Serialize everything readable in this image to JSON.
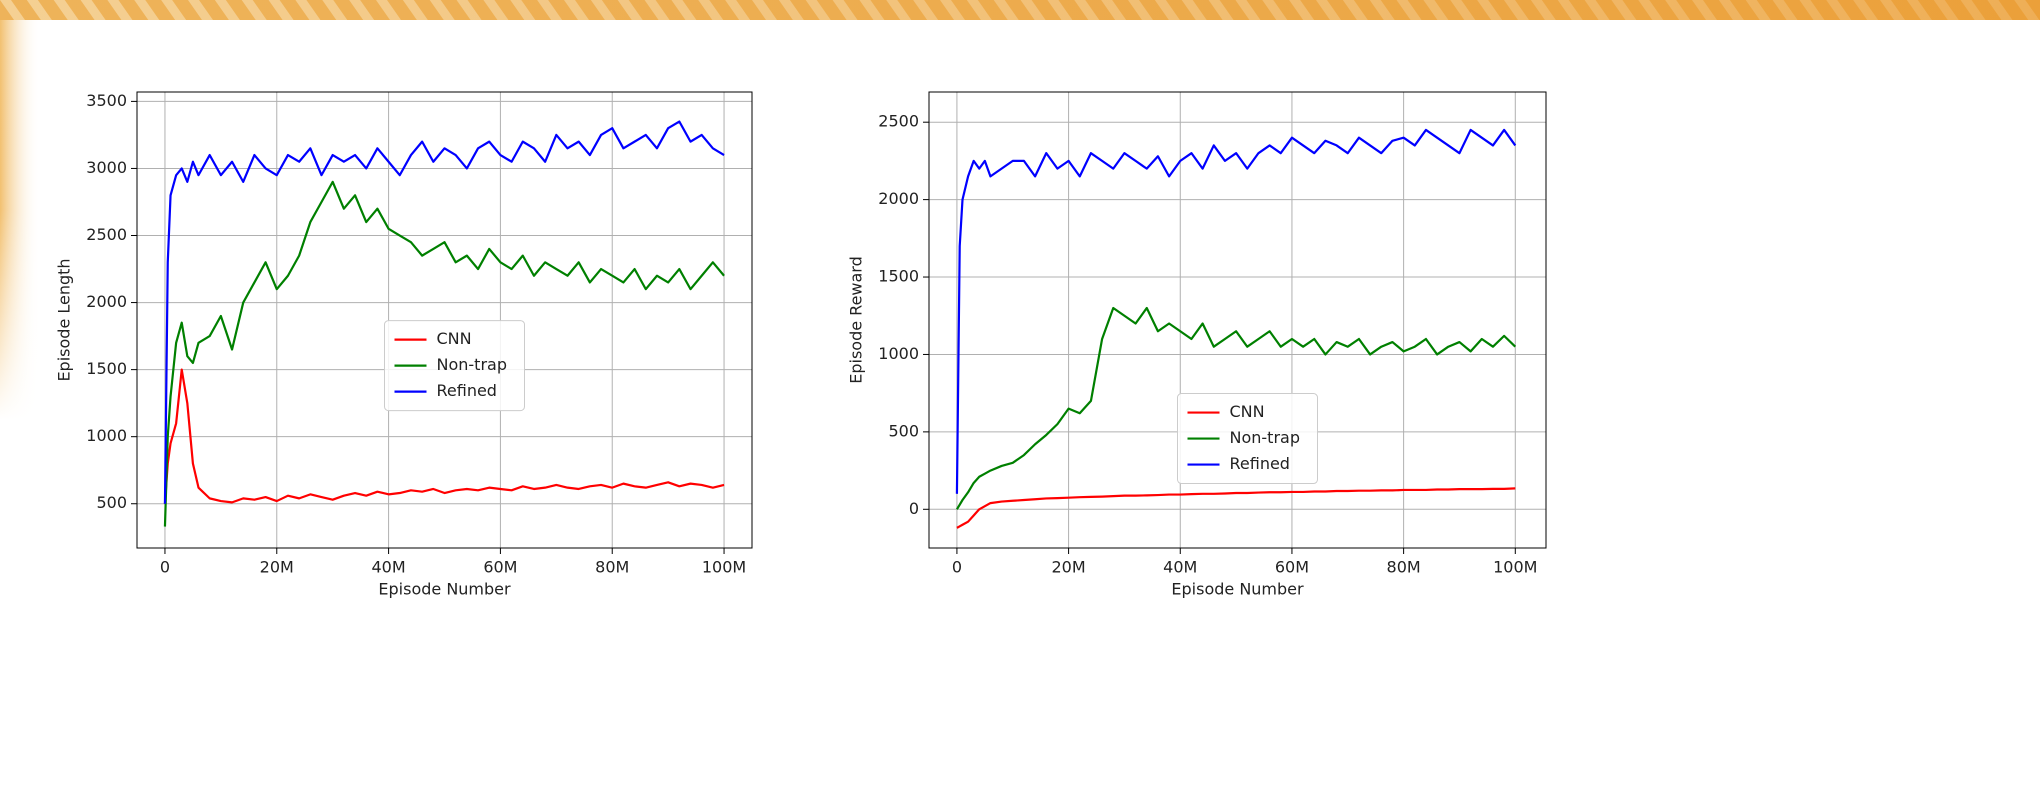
{
  "chart_data": [
    {
      "type": "line",
      "xlabel": "Episode Number",
      "ylabel": "Episode Length",
      "x": [
        0,
        500000,
        1000000,
        2000000,
        3000000,
        4000000,
        5000000,
        6000000,
        8000000,
        10000000,
        12000000,
        14000000,
        16000000,
        18000000,
        20000000,
        22000000,
        24000000,
        26000000,
        28000000,
        30000000,
        32000000,
        34000000,
        36000000,
        38000000,
        40000000,
        42000000,
        44000000,
        46000000,
        48000000,
        50000000,
        52000000,
        54000000,
        56000000,
        58000000,
        60000000,
        62000000,
        64000000,
        66000000,
        68000000,
        70000000,
        72000000,
        74000000,
        76000000,
        78000000,
        80000000,
        82000000,
        84000000,
        86000000,
        88000000,
        90000000,
        92000000,
        94000000,
        96000000,
        98000000,
        100000000
      ],
      "series": [
        {
          "name": "CNN",
          "color": "#ff0000",
          "values": [
            500,
            800,
            950,
            1100,
            1500,
            1250,
            800,
            620,
            540,
            520,
            510,
            540,
            530,
            550,
            520,
            560,
            540,
            570,
            550,
            530,
            560,
            580,
            560,
            590,
            570,
            580,
            600,
            590,
            610,
            580,
            600,
            610,
            600,
            620,
            610,
            600,
            630,
            610,
            620,
            640,
            620,
            610,
            630,
            640,
            620,
            650,
            630,
            620,
            640,
            660,
            630,
            650,
            640,
            620,
            640
          ]
        },
        {
          "name": "Non-trap",
          "color": "#008000",
          "values": [
            330,
            1000,
            1300,
            1700,
            1850,
            1600,
            1550,
            1700,
            1750,
            1900,
            1650,
            2000,
            2150,
            2300,
            2100,
            2200,
            2350,
            2600,
            2750,
            2900,
            2700,
            2800,
            2600,
            2700,
            2550,
            2500,
            2450,
            2350,
            2400,
            2450,
            2300,
            2350,
            2250,
            2400,
            2300,
            2250,
            2350,
            2200,
            2300,
            2250,
            2200,
            2300,
            2150,
            2250,
            2200,
            2150,
            2250,
            2100,
            2200,
            2150,
            2250,
            2100,
            2200,
            2300,
            2200
          ]
        },
        {
          "name": "Refined",
          "color": "#0000ff",
          "values": [
            500,
            2300,
            2800,
            2950,
            3000,
            2900,
            3050,
            2950,
            3100,
            2950,
            3050,
            2900,
            3100,
            3000,
            2950,
            3100,
            3050,
            3150,
            2950,
            3100,
            3050,
            3100,
            3000,
            3150,
            3050,
            2950,
            3100,
            3200,
            3050,
            3150,
            3100,
            3000,
            3150,
            3200,
            3100,
            3050,
            3200,
            3150,
            3050,
            3250,
            3150,
            3200,
            3100,
            3250,
            3300,
            3150,
            3200,
            3250,
            3150,
            3300,
            3350,
            3200,
            3250,
            3150,
            3100
          ]
        }
      ],
      "xlim": [
        -5000000,
        105000000
      ],
      "xticks": [
        0,
        {
          "value": 20000000,
          "label": "20M"
        },
        {
          "value": 40000000,
          "label": "40M"
        },
        {
          "value": 60000000,
          "label": "60M"
        },
        {
          "value": 80000000,
          "label": "80M"
        },
        {
          "value": 100000000,
          "label": "100M"
        }
      ],
      "ylim": [
        170,
        3570
      ],
      "yticks": [
        500,
        1000,
        1500,
        2000,
        2500,
        3000,
        3500
      ],
      "grid": true,
      "legend": "center"
    },
    {
      "type": "line",
      "xlabel": "Episode Number",
      "ylabel": "Episode Reward",
      "x": [
        0,
        500000,
        1000000,
        2000000,
        3000000,
        4000000,
        5000000,
        6000000,
        8000000,
        10000000,
        12000000,
        14000000,
        16000000,
        18000000,
        20000000,
        22000000,
        24000000,
        26000000,
        28000000,
        30000000,
        32000000,
        34000000,
        36000000,
        38000000,
        40000000,
        42000000,
        44000000,
        46000000,
        48000000,
        50000000,
        52000000,
        54000000,
        56000000,
        58000000,
        60000000,
        62000000,
        64000000,
        66000000,
        68000000,
        70000000,
        72000000,
        74000000,
        76000000,
        78000000,
        80000000,
        82000000,
        84000000,
        86000000,
        88000000,
        90000000,
        92000000,
        94000000,
        96000000,
        98000000,
        100000000
      ],
      "series": [
        {
          "name": "CNN",
          "color": "#ff0000",
          "values": [
            -120,
            -110,
            -100,
            -80,
            -40,
            0,
            20,
            40,
            50,
            55,
            60,
            65,
            70,
            72,
            75,
            78,
            80,
            82,
            85,
            88,
            88,
            90,
            92,
            95,
            95,
            98,
            100,
            100,
            102,
            105,
            105,
            108,
            110,
            110,
            112,
            112,
            115,
            115,
            118,
            118,
            120,
            120,
            122,
            122,
            125,
            125,
            125,
            128,
            128,
            130,
            130,
            130,
            132,
            132,
            135
          ]
        },
        {
          "name": "Non-trap",
          "color": "#008000",
          "values": [
            0,
            30,
            60,
            110,
            170,
            210,
            230,
            250,
            280,
            300,
            350,
            420,
            480,
            550,
            650,
            620,
            700,
            1100,
            1300,
            1250,
            1200,
            1300,
            1150,
            1200,
            1150,
            1100,
            1200,
            1050,
            1100,
            1150,
            1050,
            1100,
            1150,
            1050,
            1100,
            1050,
            1100,
            1000,
            1080,
            1050,
            1100,
            1000,
            1050,
            1080,
            1020,
            1050,
            1100,
            1000,
            1050,
            1080,
            1020,
            1100,
            1050,
            1120,
            1050
          ]
        },
        {
          "name": "Refined",
          "color": "#0000ff",
          "values": [
            100,
            1700,
            2000,
            2150,
            2250,
            2200,
            2250,
            2150,
            2200,
            2250,
            2250,
            2150,
            2300,
            2200,
            2250,
            2150,
            2300,
            2250,
            2200,
            2300,
            2250,
            2200,
            2280,
            2150,
            2250,
            2300,
            2200,
            2350,
            2250,
            2300,
            2200,
            2300,
            2350,
            2300,
            2400,
            2350,
            2300,
            2380,
            2350,
            2300,
            2400,
            2350,
            2300,
            2380,
            2400,
            2350,
            2450,
            2400,
            2350,
            2300,
            2450,
            2400,
            2350,
            2450,
            2350
          ]
        }
      ],
      "xlim": [
        -5000000,
        105500000
      ],
      "xticks": [
        0,
        {
          "value": 20000000,
          "label": "20M"
        },
        {
          "value": 40000000,
          "label": "40M"
        },
        {
          "value": 60000000,
          "label": "60M"
        },
        {
          "value": 80000000,
          "label": "80M"
        },
        {
          "value": 100000000,
          "label": "100M"
        }
      ],
      "ylim": [
        -250,
        2695
      ],
      "yticks": [
        0,
        500,
        1000,
        1500,
        2000,
        2500
      ],
      "grid": true,
      "legend": "lower center"
    }
  ]
}
